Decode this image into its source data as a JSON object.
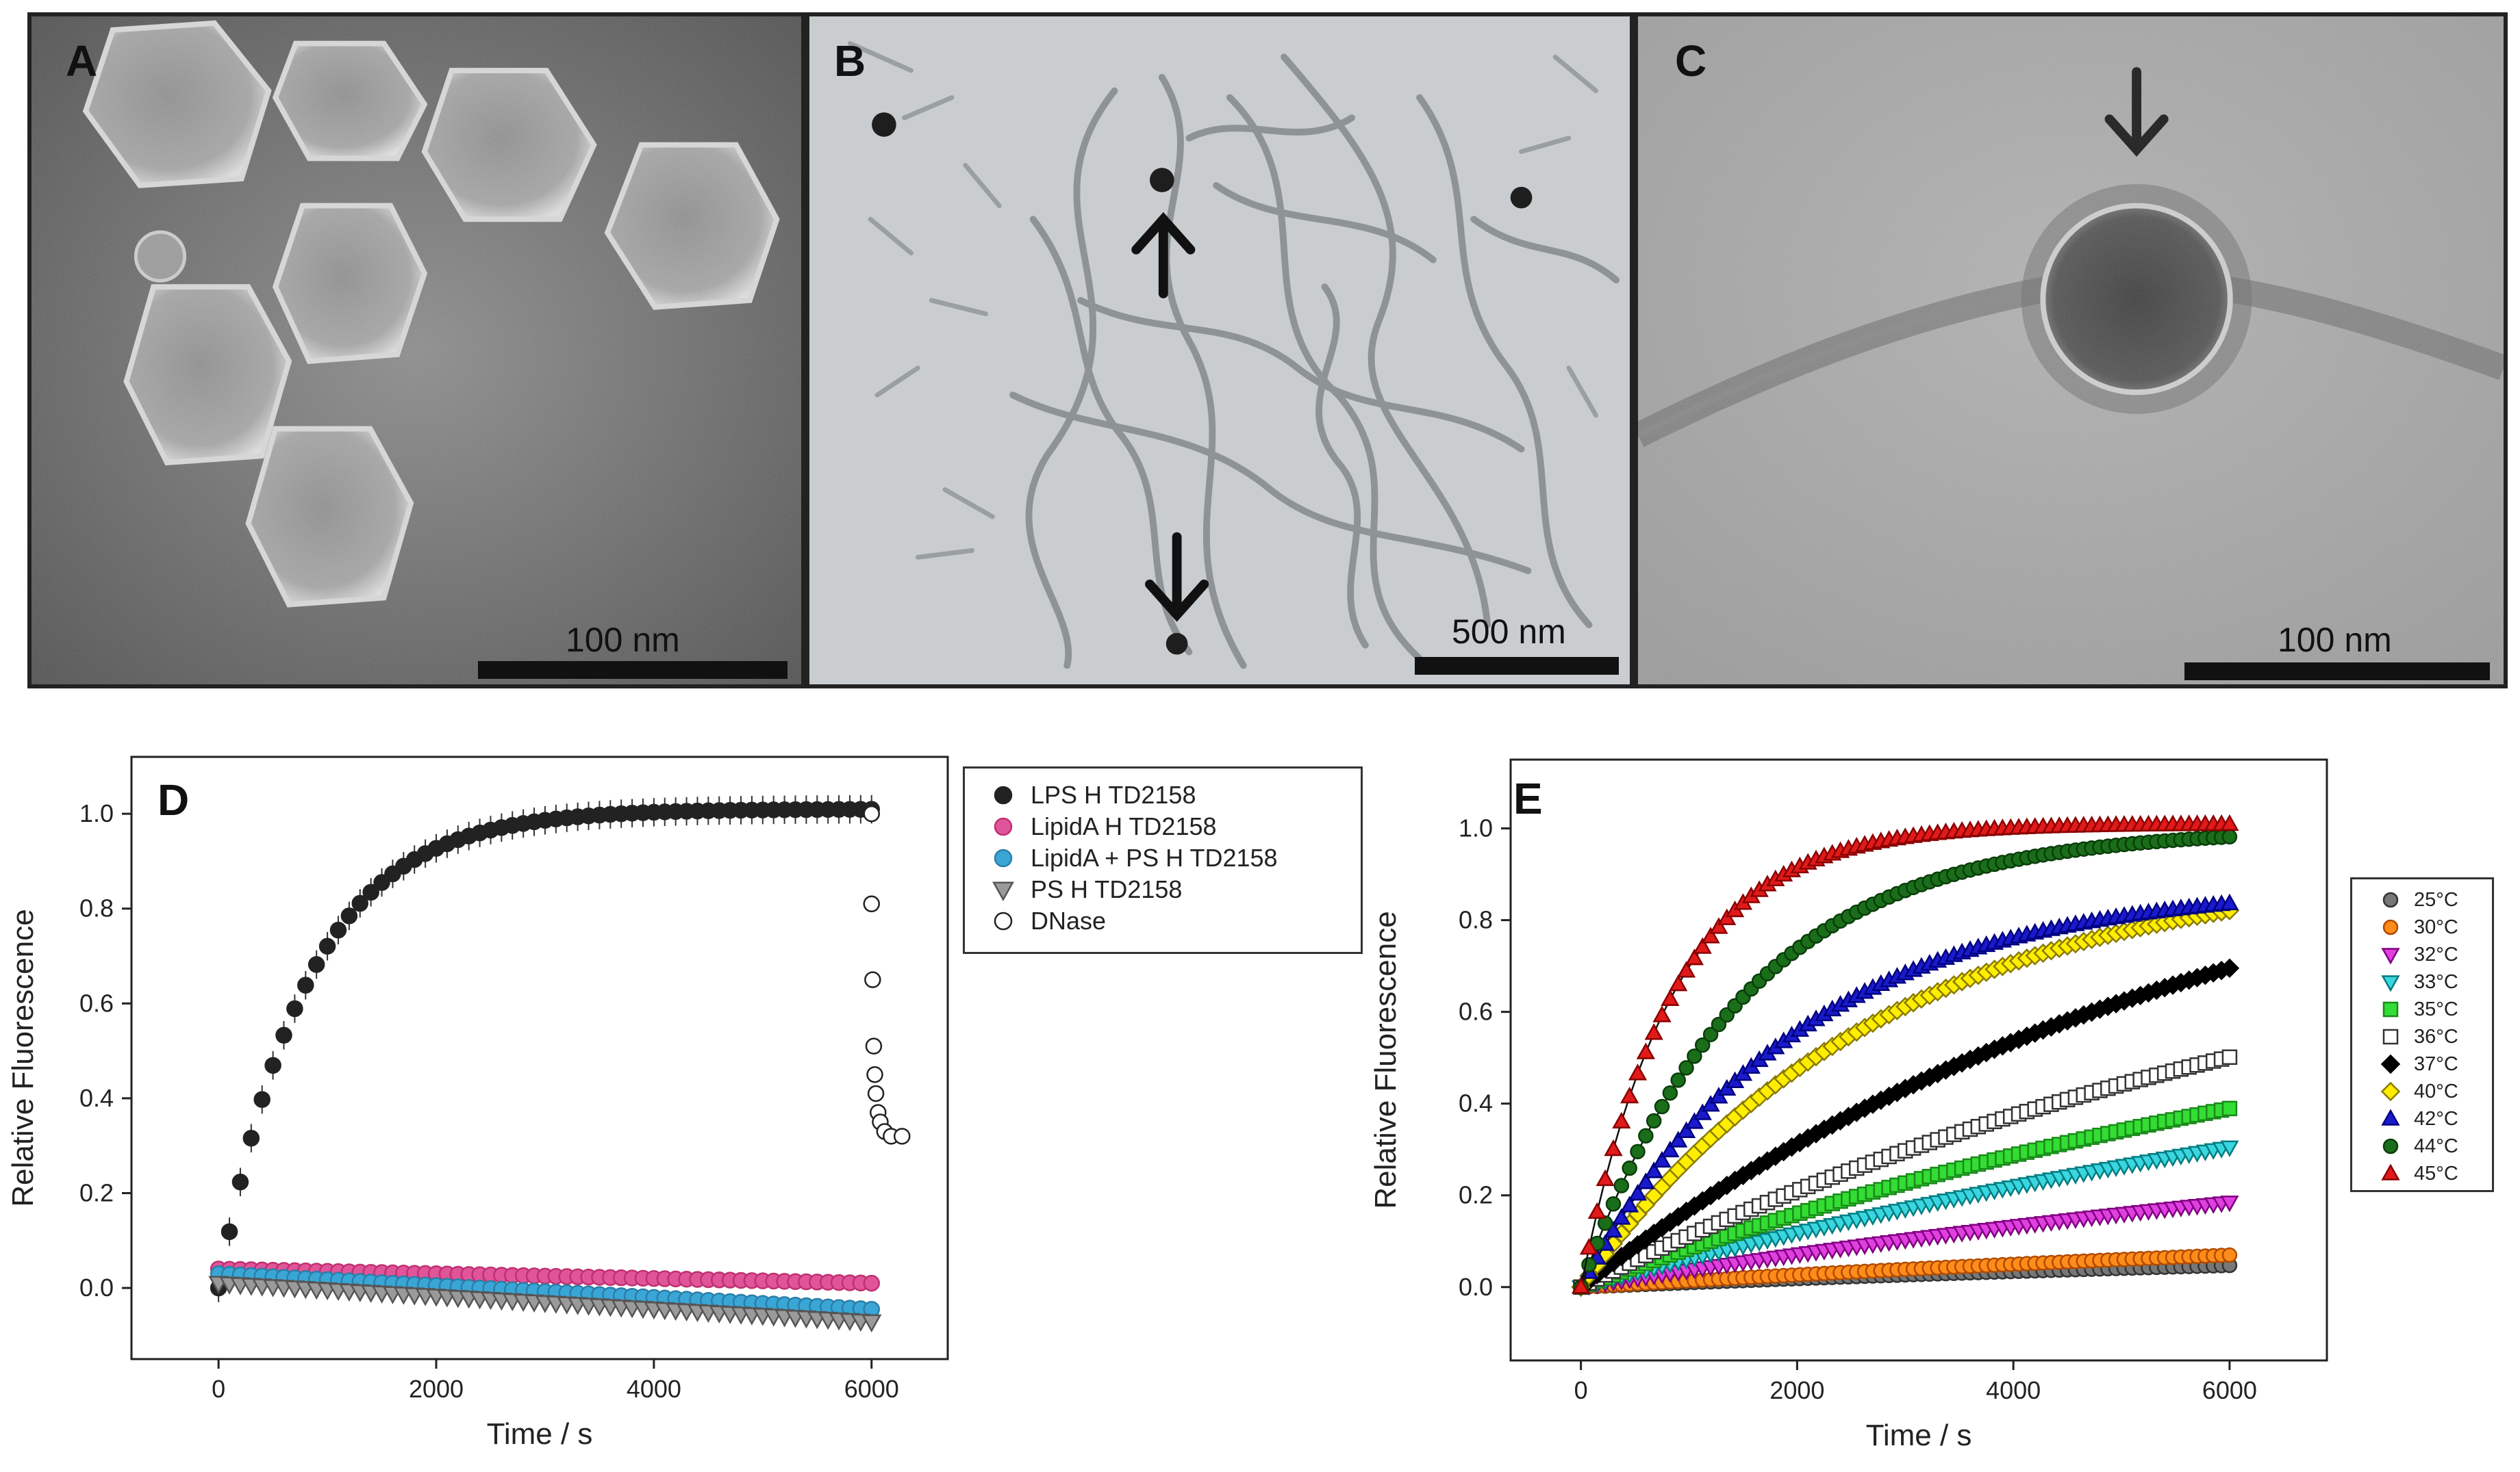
{
  "micrographs": [
    {
      "label": "A",
      "scale_bar": "100 nm"
    },
    {
      "label": "B",
      "scale_bar": "500 nm"
    },
    {
      "label": "C",
      "scale_bar": "100 nm"
    }
  ],
  "chart_data": [
    {
      "panel": "D",
      "type": "scatter",
      "xlabel": "Time / s",
      "ylabel": "Relative Fluorescence",
      "xlim": [
        -800,
        6700
      ],
      "ylim": [
        -0.15,
        1.12
      ],
      "xticks": [
        0,
        2000,
        4000,
        6000
      ],
      "yticks": [
        0.0,
        0.2,
        0.4,
        0.6,
        0.8,
        1.0
      ],
      "legend_position": "right-top",
      "grid": false,
      "series": [
        {
          "name": "LPS H TD2158",
          "marker": "circle",
          "color": "#222222",
          "fill": "#222222",
          "model": {
            "kind": "exp",
            "y0": 0.0,
            "amp": 1.01,
            "tau": 800,
            "tmin": 0,
            "tmax": 6000,
            "step": 100,
            "err": 0.03
          }
        },
        {
          "name": "LipidA H TD2158",
          "marker": "circle",
          "color": "#c03070",
          "fill": "#e0559a",
          "model": {
            "kind": "linear",
            "y0": 0.04,
            "slope": -5e-06,
            "tmin": 0,
            "tmax": 6000,
            "step": 100
          }
        },
        {
          "name": "LipidA + PS H TD2158",
          "marker": "circle",
          "color": "#2a7fa8",
          "fill": "#3aa6d6",
          "model": {
            "kind": "linear",
            "y0": 0.03,
            "slope": -1.25e-05,
            "tmin": 0,
            "tmax": 6000,
            "step": 100
          }
        },
        {
          "name": "PS H TD2158",
          "marker": "tri-down",
          "color": "#555555",
          "fill": "#9a9a9a",
          "model": {
            "kind": "linear",
            "y0": 0.01,
            "slope": -1.35e-05,
            "tmin": 0,
            "tmax": 6000,
            "step": 100
          }
        },
        {
          "name": "DNase",
          "marker": "circle",
          "color": "#222222",
          "fill": "#ffffff",
          "points": [
            [
              6000,
              1.0
            ],
            [
              6000,
              0.81
            ],
            [
              6010,
              0.65
            ],
            [
              6020,
              0.51
            ],
            [
              6030,
              0.45
            ],
            [
              6040,
              0.41
            ],
            [
              6060,
              0.37
            ],
            [
              6080,
              0.35
            ],
            [
              6120,
              0.33
            ],
            [
              6180,
              0.32
            ],
            [
              6280,
              0.32
            ]
          ]
        }
      ]
    },
    {
      "panel": "E",
      "type": "scatter",
      "xlabel": "Time / s",
      "ylabel": "Relative Fluorescence",
      "xlim": [
        -650,
        6900
      ],
      "ylim": [
        -0.16,
        1.15
      ],
      "xticks": [
        0,
        2000,
        4000,
        6000
      ],
      "yticks": [
        0.0,
        0.2,
        0.4,
        0.6,
        0.8,
        1.0
      ],
      "legend_position": "right",
      "grid": false,
      "fit_lines": true,
      "series": [
        {
          "name": "25°C",
          "marker": "circle",
          "color": "#333333",
          "fill": "#777777",
          "model": {
            "kind": "exp",
            "y0": 0,
            "amp": 0.12,
            "tau": 12000,
            "tmin": 0,
            "tmax": 6000,
            "step": 75
          }
        },
        {
          "name": "30°C",
          "marker": "circle",
          "color": "#b04a00",
          "fill": "#ff8c1a",
          "model": {
            "kind": "exp",
            "y0": 0,
            "amp": 0.2,
            "tau": 14000,
            "tmin": 0,
            "tmax": 6000,
            "step": 75
          }
        },
        {
          "name": "32°C",
          "marker": "tri-down",
          "color": "#800080",
          "fill": "#e040e0",
          "model": {
            "kind": "exp",
            "y0": 0,
            "amp": 0.5,
            "tau": 13000,
            "tmin": 0,
            "tmax": 6000,
            "step": 75
          }
        },
        {
          "name": "33°C",
          "marker": "tri-down",
          "color": "#007c80",
          "fill": "#3ad6e0",
          "model": {
            "kind": "exp",
            "y0": 0,
            "amp": 0.8,
            "tau": 12500,
            "tmin": 0,
            "tmax": 6000,
            "step": 75
          }
        },
        {
          "name": "35°C",
          "marker": "square",
          "color": "#1a8a1a",
          "fill": "#33dd33",
          "model": {
            "kind": "exp",
            "y0": 0,
            "amp": 0.8,
            "tau": 9000,
            "tmin": 0,
            "tmax": 6000,
            "step": 75
          }
        },
        {
          "name": "36°C",
          "marker": "square",
          "color": "#333333",
          "fill": "#ffffff",
          "model": {
            "kind": "exp",
            "y0": 0,
            "amp": 0.95,
            "tau": 8000,
            "tmin": 0,
            "tmax": 6000,
            "step": 75
          }
        },
        {
          "name": "37°C",
          "marker": "diamond",
          "color": "#000000",
          "fill": "#000000",
          "model": {
            "kind": "exp",
            "y0": 0,
            "amp": 1.1,
            "tau": 6000,
            "tmin": 0,
            "tmax": 6000,
            "step": 75
          }
        },
        {
          "name": "40°C",
          "marker": "diamond",
          "color": "#8a7a00",
          "fill": "#ffee00",
          "model": {
            "kind": "exp",
            "y0": 0,
            "amp": 0.93,
            "tau": 2800,
            "tmin": 0,
            "tmax": 6000,
            "step": 75
          }
        },
        {
          "name": "42°C",
          "marker": "tri-up",
          "color": "#000080",
          "fill": "#1a1acc",
          "model": {
            "kind": "exp",
            "y0": 0,
            "amp": 0.88,
            "tau": 2000,
            "tmin": 0,
            "tmax": 6000,
            "step": 75
          }
        },
        {
          "name": "44°C",
          "marker": "circle",
          "color": "#0a3d0a",
          "fill": "#1a6e1a",
          "model": {
            "kind": "exp",
            "y0": 0,
            "amp": 1.0,
            "tau": 1500,
            "tmin": 0,
            "tmax": 6000,
            "step": 75
          }
        },
        {
          "name": "45°C",
          "marker": "tri-up",
          "color": "#8a0000",
          "fill": "#e01a1a",
          "model": {
            "kind": "exp",
            "y0": 0,
            "amp": 1.01,
            "tau": 850,
            "tmin": 0,
            "tmax": 6000,
            "step": 75
          }
        }
      ]
    }
  ]
}
